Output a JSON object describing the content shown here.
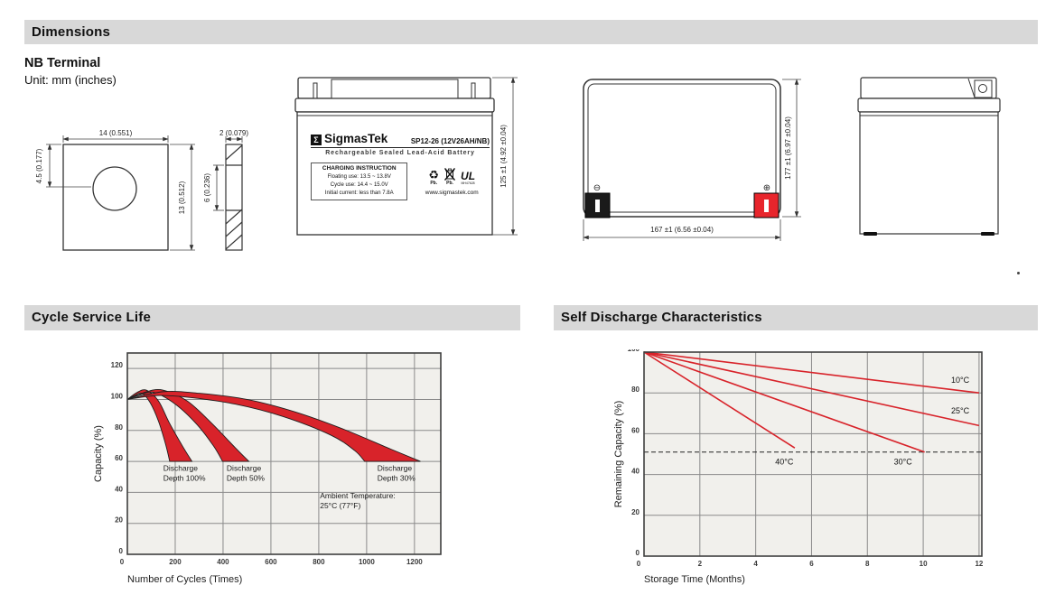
{
  "sections": {
    "dimensions": "Dimensions",
    "cycle_life": "Cycle Service Life",
    "self_discharge": "Self Discharge Characteristics"
  },
  "dimensions_block": {
    "terminal_type": "NB Terminal",
    "unit_note": "Unit: mm (inches)",
    "terminal_front": {
      "width": "14 (0.551)",
      "hole_offset": "4.5 (0.177)",
      "height": "13 (0.512)"
    },
    "terminal_side": {
      "thickness": "2 (0.079)",
      "depth": "6 (0.236)"
    },
    "battery_front": {
      "logo_glyph": "Σ",
      "brand": "SigmasTek",
      "model": "SP12-26 (12V26AH/NB)",
      "subtitle": "Rechargeable Sealed Lead-Acid Battery",
      "charging_title": "CHARGING INSTRUCTION",
      "charging_lines": [
        "Floating use: 13.5 ~ 13.8V",
        "Cycle use: 14.4 ~ 15.0V",
        "Initial current: less than 7.8A"
      ],
      "recycle_label": "Pb.",
      "bin_label": "Pb.",
      "ul_text": "UL",
      "ul_number": "MH47628",
      "website": "www.sigmastek.com",
      "height_dim": "125 ±1 (4.92 ±0.04)"
    },
    "battery_top": {
      "width_dim": "167 ±1 (6.56 ±0.04)",
      "height_dim": "177 ±1 (6.97 ±0.04)",
      "negative_symbol": "⊖",
      "positive_symbol": "⊕",
      "terminal_bar": "I"
    }
  },
  "colors": {
    "header_bar_bg": "#d8d8d8",
    "chart_bg": "#f1f0ec",
    "chart_grid": "#8a8a8a",
    "chart_border": "#3f3f3f",
    "red": "#d8232a",
    "terminal_red": "#e8252c",
    "terminal_black": "#1a1a1a"
  },
  "chart_data": [
    {
      "type": "area",
      "title": "Cycle Service Life",
      "xlabel": "Number of Cycles (Times)",
      "ylabel": "Capacity (%)",
      "xlim": [
        0,
        1310
      ],
      "ylim": [
        0,
        130
      ],
      "xticks": [
        0,
        200,
        400,
        600,
        800,
        1000,
        1200
      ],
      "yticks": [
        0,
        20,
        40,
        60,
        80,
        100,
        120
      ],
      "grid": true,
      "legend_position": "none",
      "bands": [
        {
          "name": "Discharge Depth 100%",
          "upper": [
            [
              0,
              100
            ],
            [
              40,
              104.5
            ],
            [
              80,
              106
            ],
            [
              130,
              99
            ],
            [
              175,
              85
            ],
            [
              230,
              70
            ],
            [
              270,
              60
            ]
          ],
          "lower": [
            [
              0,
              100
            ],
            [
              30,
              102.5
            ],
            [
              60,
              104
            ],
            [
              95,
              98
            ],
            [
              130,
              86
            ],
            [
              160,
              71
            ],
            [
              177,
              60
            ]
          ]
        },
        {
          "name": "Discharge Depth 50%",
          "upper": [
            [
              0,
              100
            ],
            [
              80,
              105
            ],
            [
              150,
              106
            ],
            [
              250,
              99
            ],
            [
              350,
              85
            ],
            [
              450,
              69
            ],
            [
              508,
              60
            ]
          ],
          "lower": [
            [
              0,
              100
            ],
            [
              55,
              103
            ],
            [
              110,
              104.5
            ],
            [
              200,
              97
            ],
            [
              290,
              84
            ],
            [
              360,
              70
            ],
            [
              398,
              60
            ]
          ]
        },
        {
          "name": "Discharge Depth 30%",
          "upper": [
            [
              0,
              100
            ],
            [
              150,
              105
            ],
            [
              300,
              104
            ],
            [
              500,
              100
            ],
            [
              700,
              92
            ],
            [
              900,
              81
            ],
            [
              1100,
              68
            ],
            [
              1225,
              60
            ]
          ],
          "lower": [
            [
              0,
              100
            ],
            [
              120,
              102.5
            ],
            [
              250,
              101.5
            ],
            [
              450,
              97
            ],
            [
              650,
              89
            ],
            [
              850,
              77
            ],
            [
              950,
              67
            ],
            [
              992,
              60
            ]
          ]
        }
      ],
      "annotations": [
        {
          "lines": [
            "Discharge",
            "Depth 100%"
          ],
          "x": 150,
          "y": 54
        },
        {
          "lines": [
            "Discharge",
            "Depth 50%"
          ],
          "x": 415,
          "y": 54
        },
        {
          "lines": [
            "Discharge",
            "Depth 30%"
          ],
          "x": 1045,
          "y": 54
        },
        {
          "lines": [
            "Ambient Temperature:",
            "25°C (77°F)"
          ],
          "x": 805,
          "y": 36
        }
      ]
    },
    {
      "type": "line",
      "title": "Self Discharge Characteristics",
      "xlabel": "Storage Time (Months)",
      "ylabel": "Remaining Capacity (%)",
      "xlim": [
        0,
        12.1
      ],
      "ylim": [
        0,
        100
      ],
      "xticks": [
        0,
        2,
        4,
        6,
        8,
        10,
        12
      ],
      "yticks": [
        0,
        20,
        40,
        60,
        80,
        100
      ],
      "grid": true,
      "legend_position": "inline-labels",
      "series": [
        {
          "name": "10°C",
          "points": [
            [
              0,
              100
            ],
            [
              12,
              80
            ]
          ],
          "label_at": [
            11.0,
            85
          ]
        },
        {
          "name": "25°C",
          "points": [
            [
              0,
              100
            ],
            [
              12,
              64
            ]
          ],
          "label_at": [
            11.0,
            70
          ]
        },
        {
          "name": "30°C",
          "points": [
            [
              0,
              100
            ],
            [
              10.05,
              51
            ]
          ],
          "label_at": [
            8.95,
            45
          ]
        },
        {
          "name": "40°C",
          "points": [
            [
              0,
              100
            ],
            [
              5.4,
              53
            ]
          ],
          "label_at": [
            4.7,
            45
          ]
        }
      ],
      "reference_line": {
        "y": 51,
        "style": "dashed"
      }
    }
  ]
}
